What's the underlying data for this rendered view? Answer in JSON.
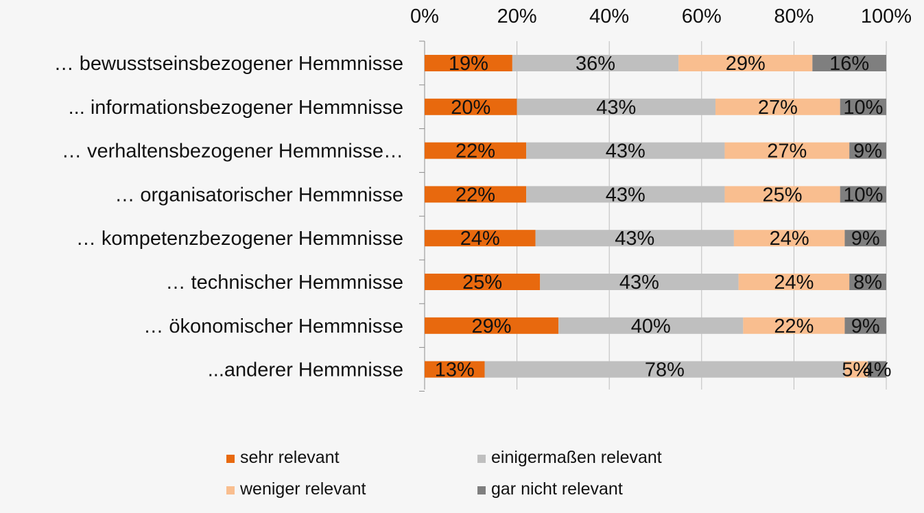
{
  "chart_data": {
    "type": "bar",
    "orientation": "horizontal",
    "stacked": "percent",
    "categories": [
      "… bewusstseinsbezogener  Hemmnisse",
      "... informationsbezogener Hemmnisse",
      "… verhaltensbezogener  Hemmnisse…",
      "… organisatorischer  Hemmnisse",
      "… kompetenzbezogener  Hemmnisse",
      "… technischer  Hemmnisse",
      "… ökonomischer  Hemmnisse",
      "...anderer Hemmnisse"
    ],
    "series": [
      {
        "name": "sehr relevant",
        "color": "#e8690e",
        "values": [
          19,
          20,
          22,
          22,
          24,
          25,
          29,
          13
        ],
        "labels": [
          "19%",
          "20%",
          "22%",
          "22%",
          "24%",
          "25%",
          "29%",
          "13%"
        ]
      },
      {
        "name": "einigermaßen relevant",
        "color": "#bfbfbf",
        "values": [
          36,
          43,
          43,
          43,
          43,
          43,
          40,
          78
        ],
        "labels": [
          "36%",
          "43%",
          "43%",
          "43%",
          "43%",
          "43%",
          "40%",
          "78%"
        ]
      },
      {
        "name": "weniger relevant",
        "color": "#f9be8f",
        "values": [
          29,
          27,
          27,
          25,
          24,
          24,
          22,
          5
        ],
        "labels": [
          "29%",
          "27%",
          "27%",
          "25%",
          "24%",
          "24%",
          "22%",
          "5%"
        ]
      },
      {
        "name": "gar nicht relevant",
        "color": "#7f7f7f",
        "values": [
          16,
          10,
          9,
          10,
          9,
          8,
          9,
          4
        ],
        "labels": [
          "16%",
          "10%",
          "9%",
          "10%",
          "9%",
          "8%",
          "9%",
          "4%"
        ]
      }
    ],
    "x_ticks": [
      "0%",
      "20%",
      "40%",
      "60%",
      "80%",
      "100%"
    ],
    "xlim": [
      0,
      100
    ],
    "x_axis_position": "top",
    "grid": true,
    "legend_position": "bottom"
  }
}
